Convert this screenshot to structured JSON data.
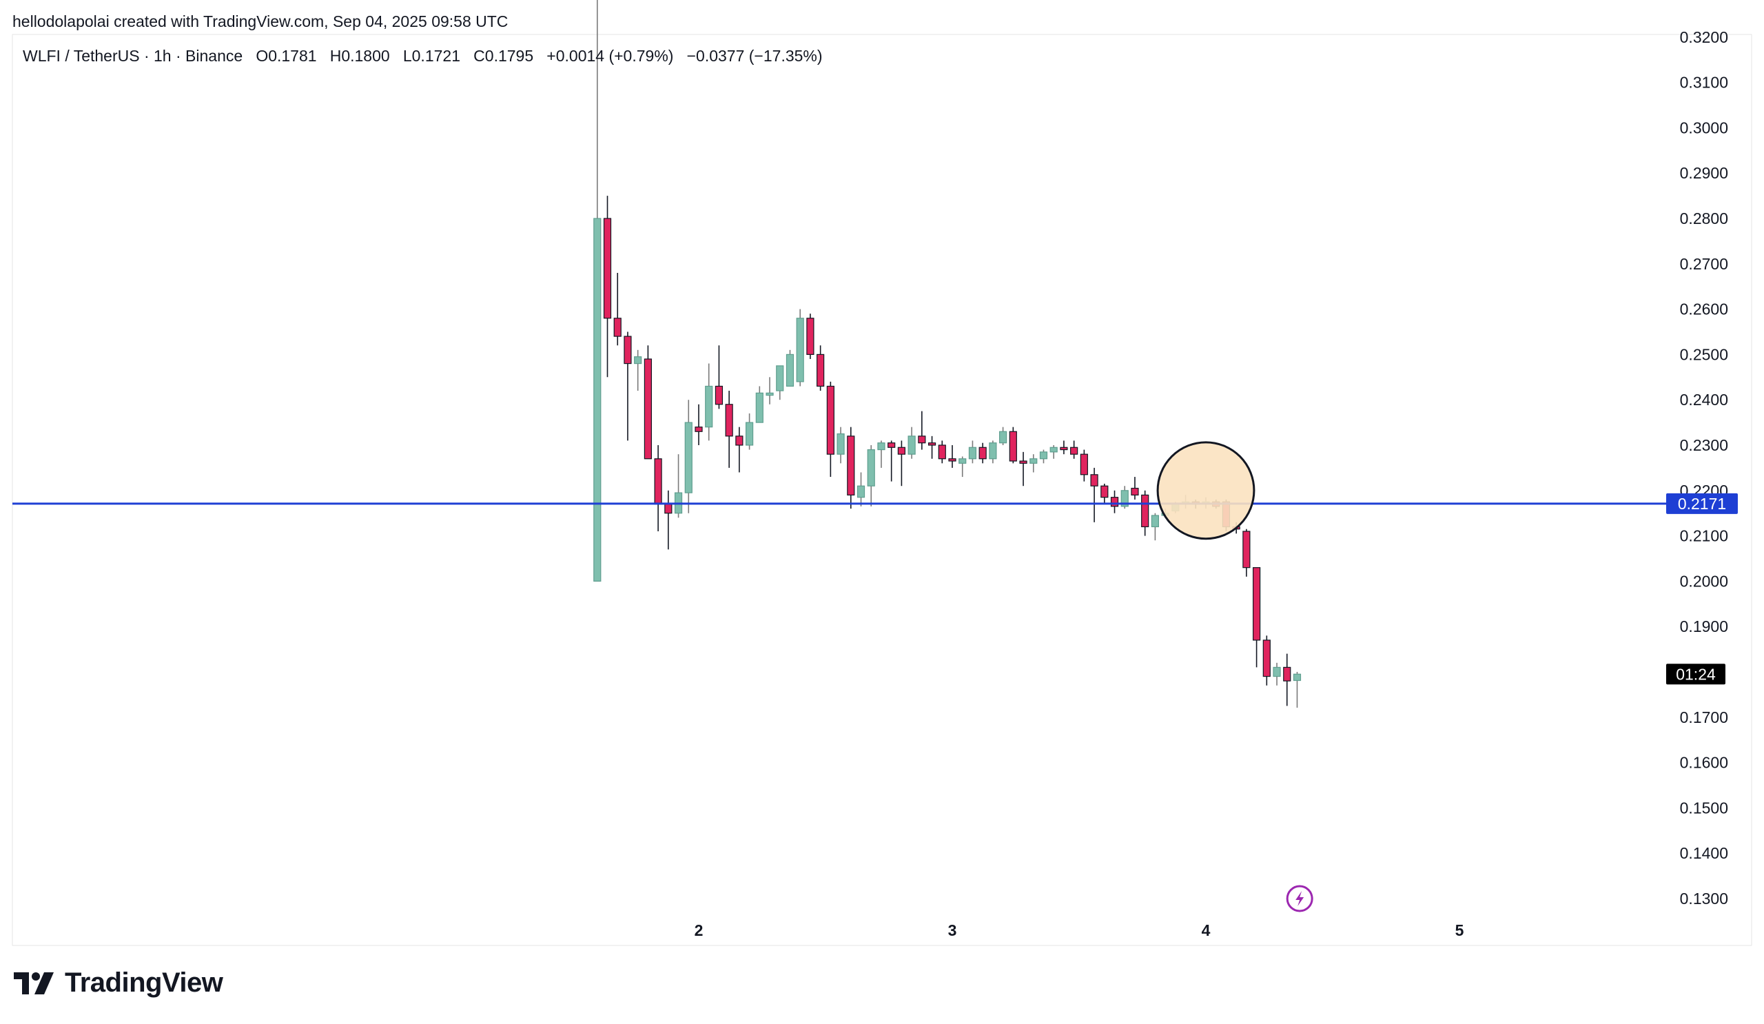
{
  "header": {
    "attribution": "hellodolapolai created with TradingView.com, Sep 04, 2025 09:58 UTC",
    "legend": "WLFI / TetherUS · 1h · Binance   O0.1781   H0.1800   L0.1721   C0.1795   +0.0014 (+0.79%)   −0.0377 (−17.35%)"
  },
  "brand": {
    "name": "TradingView",
    "logo": "tradingview-logo"
  },
  "colors": {
    "up": "#7fbfae",
    "down": "#e0245e",
    "wick": "#131722",
    "horizontal_line": "#1e3fd4",
    "price_tag_bg": "#1e3fd4",
    "countdown_bg": "#000000",
    "highlight_fill": "#fbe2c0",
    "flash_icon": "#9c27b0"
  },
  "chart_data": {
    "type": "candlestick",
    "symbol": "WLFI / TetherUS",
    "interval": "1h",
    "exchange": "Binance",
    "y_axis": {
      "side": "right",
      "ticks": [
        "0.3200",
        "0.3100",
        "0.3000",
        "0.2900",
        "0.2800",
        "0.2700",
        "0.2600",
        "0.2500",
        "0.2400",
        "0.2300",
        "0.2200",
        "0.2100",
        "0.2000",
        "0.1900",
        "0.1700",
        "0.1600",
        "0.1500",
        "0.1400",
        "0.1300"
      ],
      "ylim": [
        0.128,
        0.32
      ]
    },
    "x_axis": {
      "ticks": [
        "2",
        "3",
        "4",
        "5"
      ]
    },
    "grid": false,
    "horizontal_line": {
      "price": 0.2171,
      "label": "0.2171"
    },
    "countdown": {
      "label": "01:24",
      "price": 0.1795
    },
    "highlight_circle": {
      "center_x_day": 4.0,
      "center_price": 0.22,
      "radius_days": 0.19
    },
    "flash_icon": {
      "name": "flash-icon",
      "x_day": 4.37,
      "price": 0.13
    },
    "candles": [
      {
        "x": 1.6,
        "o": 0.2,
        "h": 0.33,
        "l": 0.2,
        "c": 0.28
      },
      {
        "x": 1.64,
        "o": 0.28,
        "h": 0.285,
        "l": 0.245,
        "c": 0.258
      },
      {
        "x": 1.68,
        "o": 0.258,
        "h": 0.268,
        "l": 0.252,
        "c": 0.254
      },
      {
        "x": 1.72,
        "o": 0.254,
        "h": 0.255,
        "l": 0.231,
        "c": 0.248
      },
      {
        "x": 1.76,
        "o": 0.248,
        "h": 0.251,
        "l": 0.242,
        "c": 0.2495
      },
      {
        "x": 1.8,
        "o": 0.249,
        "h": 0.252,
        "l": 0.227,
        "c": 0.227
      },
      {
        "x": 1.84,
        "o": 0.227,
        "h": 0.23,
        "l": 0.211,
        "c": 0.217
      },
      {
        "x": 1.88,
        "o": 0.217,
        "h": 0.22,
        "l": 0.207,
        "c": 0.215
      },
      {
        "x": 1.92,
        "o": 0.215,
        "h": 0.228,
        "l": 0.214,
        "c": 0.2195
      },
      {
        "x": 1.96,
        "o": 0.2195,
        "h": 0.24,
        "l": 0.215,
        "c": 0.235
      },
      {
        "x": 2.0,
        "o": 0.234,
        "h": 0.239,
        "l": 0.23,
        "c": 0.233
      },
      {
        "x": 2.04,
        "o": 0.234,
        "h": 0.248,
        "l": 0.231,
        "c": 0.243
      },
      {
        "x": 2.08,
        "o": 0.243,
        "h": 0.252,
        "l": 0.238,
        "c": 0.239
      },
      {
        "x": 2.12,
        "o": 0.239,
        "h": 0.242,
        "l": 0.225,
        "c": 0.232
      },
      {
        "x": 2.16,
        "o": 0.232,
        "h": 0.234,
        "l": 0.224,
        "c": 0.23
      },
      {
        "x": 2.2,
        "o": 0.23,
        "h": 0.237,
        "l": 0.229,
        "c": 0.235
      },
      {
        "x": 2.24,
        "o": 0.235,
        "h": 0.243,
        "l": 0.235,
        "c": 0.2415
      },
      {
        "x": 2.28,
        "o": 0.241,
        "h": 0.245,
        "l": 0.239,
        "c": 0.2415
      },
      {
        "x": 2.32,
        "o": 0.242,
        "h": 0.247,
        "l": 0.24,
        "c": 0.2475
      },
      {
        "x": 2.36,
        "o": 0.243,
        "h": 0.251,
        "l": 0.243,
        "c": 0.25
      },
      {
        "x": 2.4,
        "o": 0.244,
        "h": 0.26,
        "l": 0.243,
        "c": 0.258
      },
      {
        "x": 2.44,
        "o": 0.258,
        "h": 0.259,
        "l": 0.249,
        "c": 0.25
      },
      {
        "x": 2.48,
        "o": 0.25,
        "h": 0.252,
        "l": 0.242,
        "c": 0.243
      },
      {
        "x": 2.52,
        "o": 0.243,
        "h": 0.244,
        "l": 0.223,
        "c": 0.228
      },
      {
        "x": 2.56,
        "o": 0.228,
        "h": 0.234,
        "l": 0.226,
        "c": 0.2325
      },
      {
        "x": 2.6,
        "o": 0.232,
        "h": 0.234,
        "l": 0.216,
        "c": 0.219
      },
      {
        "x": 2.64,
        "o": 0.2185,
        "h": 0.224,
        "l": 0.2165,
        "c": 0.221
      },
      {
        "x": 2.68,
        "o": 0.221,
        "h": 0.23,
        "l": 0.2165,
        "c": 0.229
      },
      {
        "x": 2.72,
        "o": 0.229,
        "h": 0.231,
        "l": 0.225,
        "c": 0.2305
      },
      {
        "x": 2.76,
        "o": 0.2305,
        "h": 0.231,
        "l": 0.222,
        "c": 0.2295
      },
      {
        "x": 2.8,
        "o": 0.2295,
        "h": 0.231,
        "l": 0.221,
        "c": 0.228
      },
      {
        "x": 2.84,
        "o": 0.228,
        "h": 0.234,
        "l": 0.227,
        "c": 0.232
      },
      {
        "x": 2.88,
        "o": 0.232,
        "h": 0.2375,
        "l": 0.229,
        "c": 0.2305
      },
      {
        "x": 2.92,
        "o": 0.2305,
        "h": 0.232,
        "l": 0.227,
        "c": 0.23
      },
      {
        "x": 2.96,
        "o": 0.23,
        "h": 0.231,
        "l": 0.226,
        "c": 0.227
      },
      {
        "x": 3.0,
        "o": 0.227,
        "h": 0.23,
        "l": 0.225,
        "c": 0.2265
      },
      {
        "x": 3.04,
        "o": 0.226,
        "h": 0.2275,
        "l": 0.223,
        "c": 0.227
      },
      {
        "x": 3.08,
        "o": 0.227,
        "h": 0.231,
        "l": 0.226,
        "c": 0.2295
      },
      {
        "x": 3.12,
        "o": 0.2295,
        "h": 0.2305,
        "l": 0.226,
        "c": 0.227
      },
      {
        "x": 3.16,
        "o": 0.227,
        "h": 0.231,
        "l": 0.226,
        "c": 0.2305
      },
      {
        "x": 3.2,
        "o": 0.2305,
        "h": 0.234,
        "l": 0.23,
        "c": 0.233
      },
      {
        "x": 3.24,
        "o": 0.233,
        "h": 0.234,
        "l": 0.226,
        "c": 0.2265
      },
      {
        "x": 3.28,
        "o": 0.2265,
        "h": 0.2285,
        "l": 0.221,
        "c": 0.226
      },
      {
        "x": 3.32,
        "o": 0.226,
        "h": 0.228,
        "l": 0.224,
        "c": 0.227
      },
      {
        "x": 3.36,
        "o": 0.227,
        "h": 0.229,
        "l": 0.226,
        "c": 0.2285
      },
      {
        "x": 3.4,
        "o": 0.2285,
        "h": 0.23,
        "l": 0.227,
        "c": 0.2295
      },
      {
        "x": 3.44,
        "o": 0.2295,
        "h": 0.231,
        "l": 0.228,
        "c": 0.229
      },
      {
        "x": 3.48,
        "o": 0.2295,
        "h": 0.231,
        "l": 0.227,
        "c": 0.228
      },
      {
        "x": 3.52,
        "o": 0.228,
        "h": 0.229,
        "l": 0.222,
        "c": 0.2235
      },
      {
        "x": 3.56,
        "o": 0.2235,
        "h": 0.225,
        "l": 0.213,
        "c": 0.221
      },
      {
        "x": 3.6,
        "o": 0.221,
        "h": 0.2215,
        "l": 0.217,
        "c": 0.2185
      },
      {
        "x": 3.64,
        "o": 0.2185,
        "h": 0.22,
        "l": 0.215,
        "c": 0.2165
      },
      {
        "x": 3.68,
        "o": 0.2165,
        "h": 0.221,
        "l": 0.216,
        "c": 0.22
      },
      {
        "x": 3.72,
        "o": 0.2205,
        "h": 0.223,
        "l": 0.218,
        "c": 0.219
      },
      {
        "x": 3.76,
        "o": 0.219,
        "h": 0.22,
        "l": 0.21,
        "c": 0.212
      },
      {
        "x": 3.8,
        "o": 0.212,
        "h": 0.215,
        "l": 0.209,
        "c": 0.2145
      },
      {
        "x": 3.84,
        "o": 0.2145,
        "h": 0.216,
        "l": 0.214,
        "c": 0.215
      },
      {
        "x": 3.88,
        "o": 0.2155,
        "h": 0.2175,
        "l": 0.215,
        "c": 0.217
      },
      {
        "x": 3.92,
        "o": 0.217,
        "h": 0.219,
        "l": 0.216,
        "c": 0.2175
      },
      {
        "x": 3.96,
        "o": 0.2175,
        "h": 0.218,
        "l": 0.216,
        "c": 0.217
      },
      {
        "x": 4.0,
        "o": 0.217,
        "h": 0.2185,
        "l": 0.216,
        "c": 0.2175
      },
      {
        "x": 4.04,
        "o": 0.2175,
        "h": 0.218,
        "l": 0.216,
        "c": 0.2165
      },
      {
        "x": 4.08,
        "o": 0.2175,
        "h": 0.218,
        "l": 0.211,
        "c": 0.212
      },
      {
        "x": 4.12,
        "o": 0.212,
        "h": 0.213,
        "l": 0.2105,
        "c": 0.2115
      },
      {
        "x": 4.16,
        "o": 0.211,
        "h": 0.2115,
        "l": 0.201,
        "c": 0.203
      },
      {
        "x": 4.2,
        "o": 0.203,
        "h": 0.203,
        "l": 0.181,
        "c": 0.187
      },
      {
        "x": 4.24,
        "o": 0.187,
        "h": 0.188,
        "l": 0.177,
        "c": 0.179
      },
      {
        "x": 4.28,
        "o": 0.179,
        "h": 0.182,
        "l": 0.177,
        "c": 0.181
      },
      {
        "x": 4.32,
        "o": 0.181,
        "h": 0.184,
        "l": 0.1725,
        "c": 0.178
      },
      {
        "x": 4.36,
        "o": 0.1781,
        "h": 0.18,
        "l": 0.1721,
        "c": 0.1795
      }
    ]
  }
}
